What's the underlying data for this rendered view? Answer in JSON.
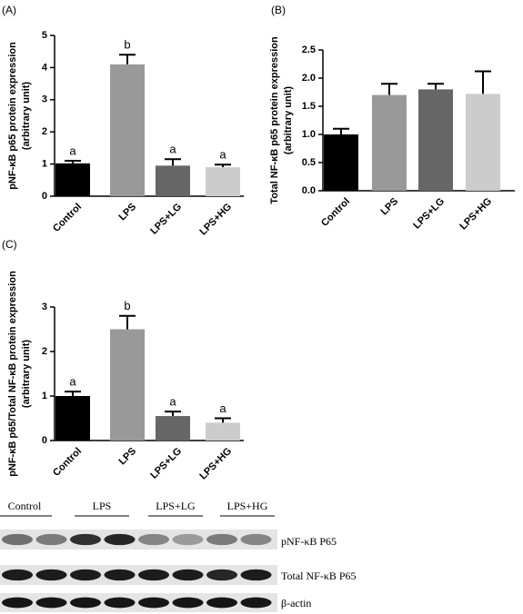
{
  "chart_data": [
    {
      "type": "bar",
      "panel_label": "(A)",
      "ylabel": [
        "pNF-κB p65 protein expression",
        "(arbitrary unit)"
      ],
      "categories": [
        "Control",
        "LPS",
        "LPS+LG",
        "LPS+HG"
      ],
      "values": [
        1.02,
        4.1,
        0.95,
        0.9
      ],
      "errors": [
        0.08,
        0.3,
        0.2,
        0.08
      ],
      "annotations": [
        "a",
        "b",
        "a",
        "a"
      ],
      "colors": [
        "#000000",
        "#999999",
        "#666666",
        "#cccccc"
      ],
      "ylim": [
        0,
        5
      ],
      "yticks": [
        0,
        1,
        2,
        3,
        4,
        5
      ]
    },
    {
      "type": "bar",
      "panel_label": "(B)",
      "ylabel": [
        "Total  NF-κB p65 protein expression",
        "(arbitrary unit)"
      ],
      "categories": [
        "Control",
        "LPS",
        "LPS+LG",
        "LPS+HG"
      ],
      "values": [
        1.0,
        1.7,
        1.8,
        1.72
      ],
      "errors": [
        0.1,
        0.2,
        0.1,
        0.4
      ],
      "colors": [
        "#000000",
        "#999999",
        "#666666",
        "#cccccc"
      ],
      "ylim": [
        0,
        2.5
      ],
      "yticks": [
        {
          "value": 0,
          "label": "0.0"
        },
        0.5,
        {
          "value": 1,
          "label": "1.0"
        },
        1.5,
        {
          "value": 2,
          "label": "2.0"
        },
        2.5
      ]
    },
    {
      "type": "bar",
      "panel_label": "(C)",
      "ylabel": [
        "pNF-κB p65/Total NF-κB protein expression",
        "(arbitrary unit)"
      ],
      "categories": [
        "Control",
        "LPS",
        "LPS+LG",
        "LPS+HG"
      ],
      "values": [
        1.0,
        2.5,
        0.55,
        0.4
      ],
      "errors": [
        0.1,
        0.3,
        0.1,
        0.1
      ],
      "annotations": [
        "a",
        "b",
        "a",
        "a"
      ],
      "colors": [
        "#000000",
        "#999999",
        "#666666",
        "#cccccc"
      ],
      "ylim": [
        0,
        3
      ],
      "yticks": [
        0,
        1,
        2,
        3
      ]
    }
  ],
  "blot": {
    "lanes": [
      "Control",
      "LPS",
      "LPS+LG",
      "LPS+HG"
    ],
    "rows": [
      "pNF-κB P65",
      "Total NF-κB P65",
      "β-actin"
    ]
  }
}
